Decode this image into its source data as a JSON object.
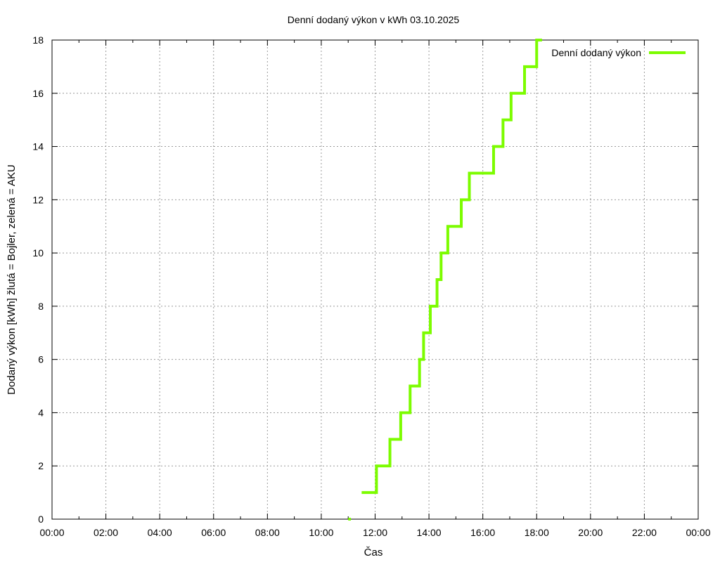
{
  "chart_data": {
    "type": "line",
    "title": "Denní dodaný výkon v kWh 03.10.2025",
    "xlabel": "Čas",
    "ylabel": "Dodaný výkon [kWh]  žlutá = Bojler, zelená = AKU",
    "xlim": [
      0,
      24
    ],
    "ylim": [
      0,
      18
    ],
    "x_ticks": [
      "00:00",
      "02:00",
      "04:00",
      "06:00",
      "08:00",
      "10:00",
      "12:00",
      "14:00",
      "16:00",
      "18:00",
      "20:00",
      "22:00",
      "00:00"
    ],
    "y_ticks": [
      0,
      2,
      4,
      6,
      8,
      10,
      12,
      14,
      16,
      18
    ],
    "grid": true,
    "legend": {
      "position": "top-right",
      "entries": [
        "Denní dodaný výkon"
      ]
    },
    "series": [
      {
        "name": "Denní dodaný výkon",
        "color": "#7cfc00",
        "step": true,
        "points": [
          [
            11.0,
            0
          ],
          [
            11.1,
            0
          ],
          [
            11.5,
            1
          ],
          [
            12.0,
            1
          ],
          [
            12.05,
            2
          ],
          [
            12.5,
            2
          ],
          [
            12.55,
            3
          ],
          [
            12.9,
            3
          ],
          [
            12.95,
            4
          ],
          [
            13.2,
            4
          ],
          [
            13.3,
            5
          ],
          [
            13.6,
            5
          ],
          [
            13.65,
            6
          ],
          [
            13.75,
            6
          ],
          [
            13.8,
            7
          ],
          [
            14.0,
            7
          ],
          [
            14.05,
            8
          ],
          [
            14.25,
            8
          ],
          [
            14.3,
            9
          ],
          [
            14.4,
            9
          ],
          [
            14.45,
            10
          ],
          [
            14.65,
            10
          ],
          [
            14.7,
            11
          ],
          [
            15.15,
            11
          ],
          [
            15.2,
            12
          ],
          [
            15.45,
            12
          ],
          [
            15.5,
            13
          ],
          [
            16.35,
            13
          ],
          [
            16.4,
            14
          ],
          [
            16.7,
            14
          ],
          [
            16.75,
            15
          ],
          [
            17.0,
            15
          ],
          [
            17.05,
            16
          ],
          [
            17.5,
            16
          ],
          [
            17.55,
            17
          ],
          [
            17.95,
            17
          ],
          [
            18.0,
            18
          ],
          [
            18.2,
            18
          ]
        ]
      }
    ]
  }
}
